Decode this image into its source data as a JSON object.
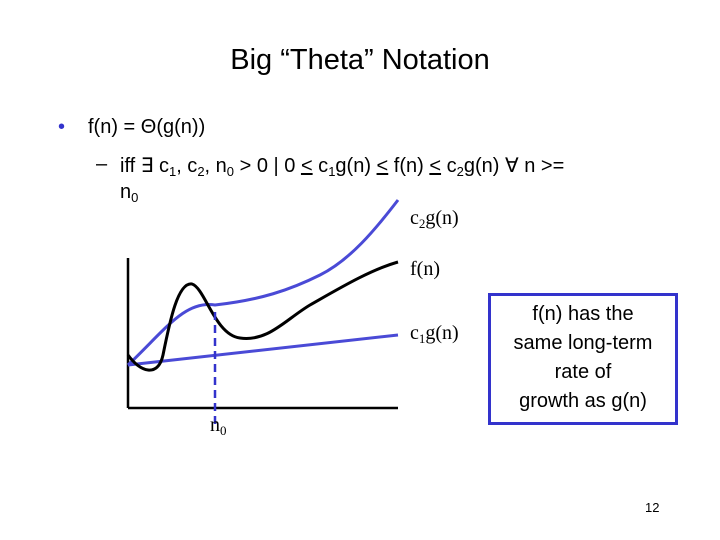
{
  "title": "Big “Theta” Notation",
  "bullet": {
    "marker": "•",
    "text": "f(n) = Θ(g(n))"
  },
  "sub_bullet": {
    "marker": "–",
    "line1": [
      "iff ∃ c",
      "1",
      ", c",
      "2",
      ", n",
      "0",
      " > 0 | 0 ",
      "<",
      " c",
      "1",
      "g(n) ",
      "<",
      " f(n) ",
      "<",
      " c",
      "2",
      "g(n) ∀ n >="
    ],
    "line2": [
      "n",
      "0"
    ]
  },
  "labels": {
    "upper": [
      "c",
      "2",
      "g(n)"
    ],
    "middle": "f(n)",
    "lower": [
      "c",
      "1",
      "g(n)"
    ],
    "threshold": [
      "n",
      "0"
    ]
  },
  "box": {
    "lines": [
      "f(n) has the",
      "same long-term",
      "rate of",
      "growth as g(n)"
    ]
  },
  "page_number": "12"
}
